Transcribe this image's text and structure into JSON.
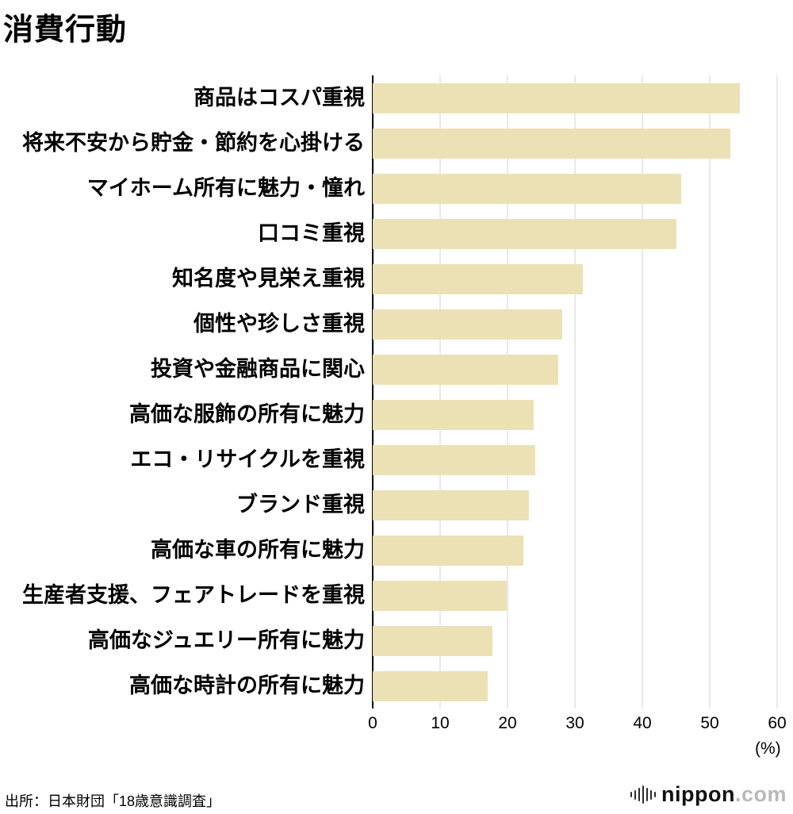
{
  "title": "消費行動",
  "source": "出所：日本財団「18歳意識調査」",
  "axis": {
    "unit_label": "(%)"
  },
  "logo": {
    "name": "nippon",
    "suffix": ".com",
    "icon": "equalizer-bars-icon",
    "icon_bars": [
      7,
      12,
      17,
      23,
      17,
      12,
      7
    ]
  },
  "chart_data": {
    "type": "bar",
    "orientation": "horizontal",
    "title": "消費行動",
    "xlabel": "(%)",
    "ylabel": "",
    "xlim": [
      0,
      60
    ],
    "xticks": [
      0,
      10,
      20,
      30,
      40,
      50,
      60
    ],
    "grid": true,
    "bar_color": "#ece1b5",
    "gridline_color": "#d3d3d3",
    "categories": [
      "商品はコスパ重視",
      "将来不安から貯金・節約を心掛ける",
      "マイホーム所有に魅力・憧れ",
      "口コミ重視",
      "知名度や見栄え重視",
      "個性や珍しさ重視",
      "投資や金融商品に関心",
      "高価な服飾の所有に魅力",
      "エコ・リサイクルを重視",
      "ブランド重視",
      "高価な車の所有に魅力",
      "生産者支援、フェアトレードを重視",
      "高価なジュエリー所有に魅力",
      "高価な時計の所有に魅力"
    ],
    "values": [
      52.4,
      51.0,
      44.0,
      43.4,
      30.0,
      27.0,
      26.5,
      23.0,
      23.2,
      22.3,
      21.5,
      19.1,
      17.1,
      16.4
    ]
  }
}
